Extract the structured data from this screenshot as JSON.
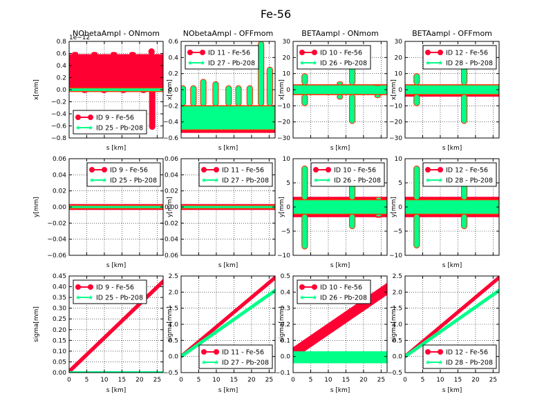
{
  "title": "Fe-56",
  "colors": {
    "series_a": "#ff0033",
    "series_b": "#00ff88",
    "line_a": "#ff3300"
  },
  "chart_data": [
    {
      "type": "scatter",
      "title": "NObetaAmpl - ONmom",
      "xlabel": "s [km]",
      "ylabel": "x[mm]",
      "xlim": [
        0,
        26.7
      ],
      "ylim": [
        -0.8,
        0.8
      ],
      "yticks": [
        "0.8",
        "0.6",
        "0.4",
        "0.2",
        "0.0",
        "−0.2",
        "−0.4",
        "−0.6",
        "−0.8"
      ],
      "offset_text": "1e−12",
      "legend": {
        "position": "lower-left",
        "entries": [
          "ID 9 - Fe-56",
          "ID 25 - Pb-208"
        ]
      },
      "series": [
        {
          "name": "ID 9 - Fe-56",
          "band": [
            0.0,
            0.58
          ],
          "spikes": [
            [
              1.7,
              0.62
            ],
            [
              4.4,
              -0.05
            ],
            [
              7.2,
              0.62
            ],
            [
              9.9,
              -0.05
            ],
            [
              12.7,
              0.62
            ],
            [
              15.4,
              -0.05
            ],
            [
              18.0,
              0.62
            ],
            [
              21.1,
              -0.05
            ],
            [
              23.4,
              0.68
            ],
            [
              23.6,
              -0.66
            ]
          ]
        },
        {
          "name": "ID 25 - Pb-208",
          "band": [
            -0.03,
            0.03
          ],
          "spikes": []
        }
      ]
    },
    {
      "type": "scatter",
      "title": "NObetaAmpl - OFFmom",
      "xlabel": "s [km]",
      "ylabel": "x[mm]",
      "xlim": [
        0,
        26.7
      ],
      "ylim": [
        -0.6,
        0.6
      ],
      "yticks": [
        "0.6",
        "0.4",
        "0.2",
        "0.0",
        "−0.2",
        "−0.4",
        "−0.6"
      ],
      "legend": {
        "position": "upper-left",
        "entries": [
          "ID 11 - Fe-56",
          "ID 27 - Pb-208"
        ]
      },
      "series": [
        {
          "name": "ID 11 - Fe-56",
          "band": [
            -0.53,
            -0.2
          ],
          "spikes": [
            [
              0.5,
              0.05
            ],
            [
              3.5,
              0.05
            ],
            [
              6.3,
              0.13
            ],
            [
              9.8,
              0.1
            ],
            [
              13.5,
              0.05
            ],
            [
              16.3,
              0.05
            ],
            [
              19.5,
              0.05
            ],
            [
              22.7,
              0.6
            ],
            [
              25.2,
              0.28
            ]
          ]
        },
        {
          "name": "ID 27 - Pb-208",
          "band": [
            -0.5,
            -0.2
          ],
          "spikes": [
            [
              0.5,
              0.05
            ],
            [
              3.5,
              0.05
            ],
            [
              6.3,
              0.13
            ],
            [
              9.8,
              0.1
            ],
            [
              13.5,
              0.05
            ],
            [
              16.3,
              0.05
            ],
            [
              19.5,
              0.05
            ],
            [
              22.7,
              0.6
            ],
            [
              25.2,
              0.28
            ]
          ]
        }
      ]
    },
    {
      "type": "scatter",
      "title": "BETAampl - ONmom",
      "xlabel": "s [km]",
      "ylabel": "x[mm]",
      "xlim": [
        0,
        26.7
      ],
      "ylim": [
        -30,
        30
      ],
      "yticks": [
        "30",
        "20",
        "10",
        "0",
        "−10",
        "−20",
        "−30"
      ],
      "legend": {
        "position": "upper-left",
        "entries": [
          "ID 10 - Fe-56",
          "ID 26 - Pb-208"
        ]
      },
      "series": [
        {
          "name": "ID 10 - Fe-56",
          "band": [
            -3,
            3
          ],
          "spikes": [
            [
              3.3,
              10
            ],
            [
              3.3,
              -10
            ],
            [
              13.3,
              5
            ],
            [
              13.3,
              -6
            ],
            [
              16.8,
              15
            ],
            [
              16.8,
              -21
            ],
            [
              24.0,
              3
            ],
            [
              24.0,
              -5
            ]
          ]
        },
        {
          "name": "ID 26 - Pb-208",
          "band": [
            -3,
            3
          ],
          "spikes": [
            [
              3.3,
              10
            ],
            [
              3.3,
              -10
            ],
            [
              13.3,
              5
            ],
            [
              13.3,
              -6
            ],
            [
              16.8,
              15
            ],
            [
              16.8,
              -21
            ],
            [
              24.0,
              3
            ],
            [
              24.0,
              -5
            ]
          ]
        }
      ]
    },
    {
      "type": "scatter",
      "title": "BETAampl - OFFmom",
      "xlabel": "s [km]",
      "ylabel": "x[mm]",
      "xlim": [
        0,
        26.7
      ],
      "ylim": [
        -30,
        30
      ],
      "yticks": [
        "30",
        "20",
        "10",
        "0",
        "−10",
        "−20",
        "−30"
      ],
      "legend": {
        "position": "upper-right",
        "entries": [
          "ID 12 - Fe-56",
          "ID 28 - Pb-208"
        ]
      },
      "series": [
        {
          "name": "ID 12 - Fe-56",
          "band": [
            -4,
            3
          ],
          "spikes": [
            [
              3.3,
              10
            ],
            [
              3.3,
              -10
            ],
            [
              16.8,
              14
            ],
            [
              16.8,
              -21
            ]
          ]
        },
        {
          "name": "ID 28 - Pb-208",
          "band": [
            -3,
            3
          ],
          "spikes": [
            [
              3.3,
              10
            ],
            [
              3.3,
              -10
            ],
            [
              16.8,
              14
            ],
            [
              16.8,
              -21
            ]
          ]
        }
      ]
    },
    {
      "type": "scatter",
      "title": "",
      "xlabel": "s [km]",
      "ylabel": "y[mm]",
      "xlim": [
        0,
        26.7
      ],
      "ylim": [
        -0.06,
        0.06
      ],
      "yticks": [
        "0.06",
        "0.04",
        "0.02",
        "0.00",
        "−0.02",
        "−0.04",
        "−0.06"
      ],
      "legend": {
        "position": "upper-right",
        "entries": [
          "ID 9 - Fe-56",
          "ID 25 - Pb-208"
        ]
      },
      "series": [
        {
          "name": "ID 9 - Fe-56",
          "band": [
            -0.003,
            0.003
          ],
          "spikes": []
        },
        {
          "name": "ID 25 - Pb-208",
          "band": [
            -0.002,
            0.002
          ],
          "spikes": []
        }
      ]
    },
    {
      "type": "scatter",
      "title": "",
      "xlabel": "s [km]",
      "ylabel": "y[mm]",
      "xlim": [
        0,
        26.7
      ],
      "ylim": [
        -0.06,
        0.06
      ],
      "yticks": [
        "0.06",
        "0.04",
        "0.02",
        "0.00",
        "−0.02",
        "−0.04",
        "−0.06"
      ],
      "legend": {
        "position": "upper-right",
        "entries": [
          "ID 11 - Fe-56",
          "ID 27 - Pb-208"
        ]
      },
      "series": [
        {
          "name": "ID 11 - Fe-56",
          "band": [
            -0.003,
            0.003
          ],
          "spikes": []
        },
        {
          "name": "ID 27 - Pb-208",
          "band": [
            -0.002,
            0.002
          ],
          "spikes": []
        }
      ]
    },
    {
      "type": "scatter",
      "title": "",
      "xlabel": "s [km]",
      "ylabel": "y[mm]",
      "xlim": [
        0,
        26.7
      ],
      "ylim": [
        -10,
        10
      ],
      "yticks": [
        "10",
        "5",
        "0",
        "−5",
        "−10"
      ],
      "legend": {
        "position": "upper-right",
        "entries": [
          "ID 10 - Fe-56",
          "ID 26 - Pb-208"
        ]
      },
      "series": [
        {
          "name": "ID 10 - Fe-56",
          "band": [
            -2,
            2
          ],
          "spikes": [
            [
              3.3,
              8.5
            ],
            [
              3.3,
              -8.7
            ],
            [
              16.8,
              5
            ],
            [
              16.8,
              -4.5
            ],
            [
              24.3,
              2
            ],
            [
              24.3,
              -2
            ]
          ]
        },
        {
          "name": "ID 26 - Pb-208",
          "band": [
            -1.5,
            1.5
          ],
          "spikes": [
            [
              3.3,
              8.5
            ],
            [
              3.3,
              -8.7
            ],
            [
              16.8,
              5
            ],
            [
              16.8,
              -4.5
            ],
            [
              24.3,
              2
            ],
            [
              24.3,
              -2
            ]
          ]
        }
      ]
    },
    {
      "type": "scatter",
      "title": "",
      "xlabel": "s [km]",
      "ylabel": "y[mm]",
      "xlim": [
        0,
        26.7
      ],
      "ylim": [
        -10,
        10
      ],
      "yticks": [
        "10",
        "5",
        "0",
        "−5",
        "−10"
      ],
      "legend": {
        "position": "upper-right",
        "entries": [
          "ID 12 - Fe-56",
          "ID 28 - Pb-208"
        ]
      },
      "series": [
        {
          "name": "ID 12 - Fe-56",
          "band": [
            -2,
            2
          ],
          "spikes": [
            [
              3.3,
              8.5
            ],
            [
              3.3,
              -8.5
            ],
            [
              16.8,
              5
            ],
            [
              16.8,
              -4.5
            ]
          ]
        },
        {
          "name": "ID 28 - Pb-208",
          "band": [
            -1.5,
            1.5
          ],
          "spikes": [
            [
              3.3,
              8.5
            ],
            [
              3.3,
              -8.5
            ],
            [
              16.8,
              5
            ],
            [
              16.8,
              -4.5
            ]
          ]
        }
      ]
    },
    {
      "type": "line",
      "title": "",
      "xlabel": "s [km]",
      "ylabel": "sigma[mm]",
      "xlim": [
        0,
        26.7
      ],
      "ylim": [
        0,
        0.45
      ],
      "xticks": [
        "0",
        "5",
        "10",
        "15",
        "20",
        "25"
      ],
      "yticks": [
        "0.45",
        "0.40",
        "0.35",
        "0.30",
        "0.25",
        "0.20",
        "0.15",
        "0.10",
        "0.05",
        "0.00"
      ],
      "legend": {
        "position": "upper-left",
        "entries": [
          "ID 9 - Fe-56",
          "ID 25 - Pb-208"
        ]
      },
      "series": [
        {
          "name": "ID 9 - Fe-56",
          "x": [
            0,
            26.7
          ],
          "y": [
            0.005,
            0.425
          ],
          "width": 0.01
        },
        {
          "name": "ID 25 - Pb-208",
          "x": [
            0,
            26.7
          ],
          "y": [
            0.0,
            0.0
          ],
          "width": 0.005
        }
      ]
    },
    {
      "type": "line",
      "title": "",
      "xlabel": "s [km]",
      "ylabel": "sigma[mm]",
      "xlim": [
        0,
        26.7
      ],
      "ylim": [
        -0.5,
        2.5
      ],
      "xticks": [
        "0",
        "5",
        "10",
        "15",
        "20",
        "25"
      ],
      "yticks": [
        "2.5",
        "2.0",
        "1.5",
        "1.0",
        "0.5",
        "0.0",
        "−0.5"
      ],
      "legend": {
        "position": "lower-right",
        "entries": [
          "ID 11 - Fe-56",
          "ID 27 - Pb-208"
        ]
      },
      "series": [
        {
          "name": "ID 11 - Fe-56",
          "x": [
            0,
            26.7
          ],
          "y": [
            0.0,
            2.45
          ],
          "width": 0.06
        },
        {
          "name": "ID 27 - Pb-208",
          "x": [
            0,
            26.7
          ],
          "y": [
            0.0,
            2.05
          ],
          "width": 0.05
        }
      ]
    },
    {
      "type": "line",
      "title": "",
      "xlabel": "s [km]",
      "ylabel": "sigma[mm]",
      "xlim": [
        0,
        26.7
      ],
      "ylim": [
        -0.1,
        0.5
      ],
      "xticks": [
        "0",
        "5",
        "10",
        "15",
        "20",
        "25"
      ],
      "yticks": [
        "0.5",
        "0.4",
        "0.3",
        "0.2",
        "0.1",
        "0.0",
        "−0.1"
      ],
      "legend": {
        "position": "upper-left",
        "entries": [
          "ID 10 - Fe-56",
          "ID 26 - Pb-208"
        ]
      },
      "series": [
        {
          "name": "ID 10 - Fe-56",
          "x": [
            0,
            26.7
          ],
          "y": [
            0.02,
            0.42
          ],
          "width": 0.035
        },
        {
          "name": "ID 26 - Pb-208",
          "x": [
            0,
            26.7
          ],
          "y": [
            -0.005,
            -0.005
          ],
          "width": 0.035
        }
      ]
    },
    {
      "type": "line",
      "title": "",
      "xlabel": "s [km]",
      "ylabel": "sigma[mm]",
      "xlim": [
        0,
        26.7
      ],
      "ylim": [
        -0.5,
        2.5
      ],
      "xticks": [
        "0",
        "5",
        "10",
        "15",
        "20",
        "25"
      ],
      "yticks": [
        "2.5",
        "2.0",
        "1.5",
        "1.0",
        "0.5",
        "0.0",
        "−0.5"
      ],
      "legend": {
        "position": "lower-right",
        "entries": [
          "ID 12 - Fe-56",
          "ID 28 - Pb-208"
        ]
      },
      "series": [
        {
          "name": "ID 12 - Fe-56",
          "x": [
            0,
            26.7
          ],
          "y": [
            0.0,
            2.45
          ],
          "width": 0.06
        },
        {
          "name": "ID 28 - Pb-208",
          "x": [
            0,
            26.7
          ],
          "y": [
            0.0,
            2.05
          ],
          "width": 0.05
        }
      ]
    }
  ]
}
